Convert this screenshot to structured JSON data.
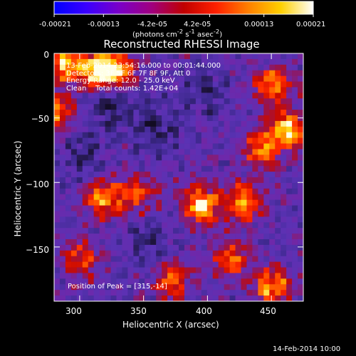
{
  "colorbar": {
    "tick_labels": [
      "-0.00021",
      "-0.00013",
      "-4.2e-05",
      "4.2e-05",
      "0.00013",
      "0.00021"
    ],
    "units_html": "(photons cm<sup>-2</sup> s<sup>-1</sup> asec<sup>-2</sup>)",
    "range": [
      -0.00021,
      0.00021
    ],
    "colors": [
      "#0000ff",
      "#3a00ff",
      "#7a00c8",
      "#a00080",
      "#c00000",
      "#ff2000",
      "#ff8000",
      "#ffd000",
      "#ffffff"
    ]
  },
  "annotations": [
    "13-Feb-2014 23:54:16.000 to 00:01:44.000",
    "Detectors: 3F 5F 6F 7F 8F 9F, Att 0",
    "Energy Range: 12.0 - 25.0 keV",
    "Clean    Total counts: 1.42E+04"
  ],
  "peak_label": "Position of Peak = [315,-14]",
  "footer_date": "14-Feb-2014 10:00",
  "chart_data": {
    "type": "heatmap",
    "title": "Reconstructed RHESSI Image",
    "xlabel": "Heliocentric X (arcsec)",
    "ylabel": "Heliocentric Y (arcsec)",
    "xlim": [
      280,
      475
    ],
    "ylim": [
      -192,
      0
    ],
    "x_ticks": [
      300,
      350,
      400,
      450
    ],
    "y_ticks": [
      0,
      -50,
      -100,
      -150
    ],
    "x_tick_labels": [
      "300",
      "350",
      "400",
      "450"
    ],
    "y_tick_labels": [
      "0",
      "−50",
      "−100",
      "−150"
    ],
    "grid": false,
    "colorbar_position": "top",
    "bright_regions": [
      {
        "x": 290,
        "y": -8,
        "intensity": 0.9
      },
      {
        "x": 315,
        "y": -14,
        "intensity": 1.0
      },
      {
        "x": 330,
        "y": -12,
        "intensity": 0.75
      },
      {
        "x": 283,
        "y": -45,
        "intensity": 0.7
      },
      {
        "x": 452,
        "y": -25,
        "intensity": 0.8
      },
      {
        "x": 462,
        "y": -60,
        "intensity": 0.95
      },
      {
        "x": 442,
        "y": -75,
        "intensity": 0.7
      },
      {
        "x": 395,
        "y": -118,
        "intensity": 1.0
      },
      {
        "x": 428,
        "y": -115,
        "intensity": 0.85
      },
      {
        "x": 318,
        "y": -112,
        "intensity": 0.85
      },
      {
        "x": 345,
        "y": -108,
        "intensity": 0.6
      },
      {
        "x": 372,
        "y": -175,
        "intensity": 0.7
      },
      {
        "x": 450,
        "y": -180,
        "intensity": 0.8
      },
      {
        "x": 300,
        "y": -160,
        "intensity": 0.6
      },
      {
        "x": 420,
        "y": -160,
        "intensity": 0.6
      }
    ],
    "dark_regions": [
      {
        "x": 325,
        "y": -40,
        "intensity": 0.9
      },
      {
        "x": 360,
        "y": -60,
        "intensity": 0.8
      },
      {
        "x": 400,
        "y": -30,
        "intensity": 0.7
      },
      {
        "x": 300,
        "y": -80,
        "intensity": 0.7
      },
      {
        "x": 355,
        "y": -150,
        "intensity": 0.7
      }
    ]
  }
}
